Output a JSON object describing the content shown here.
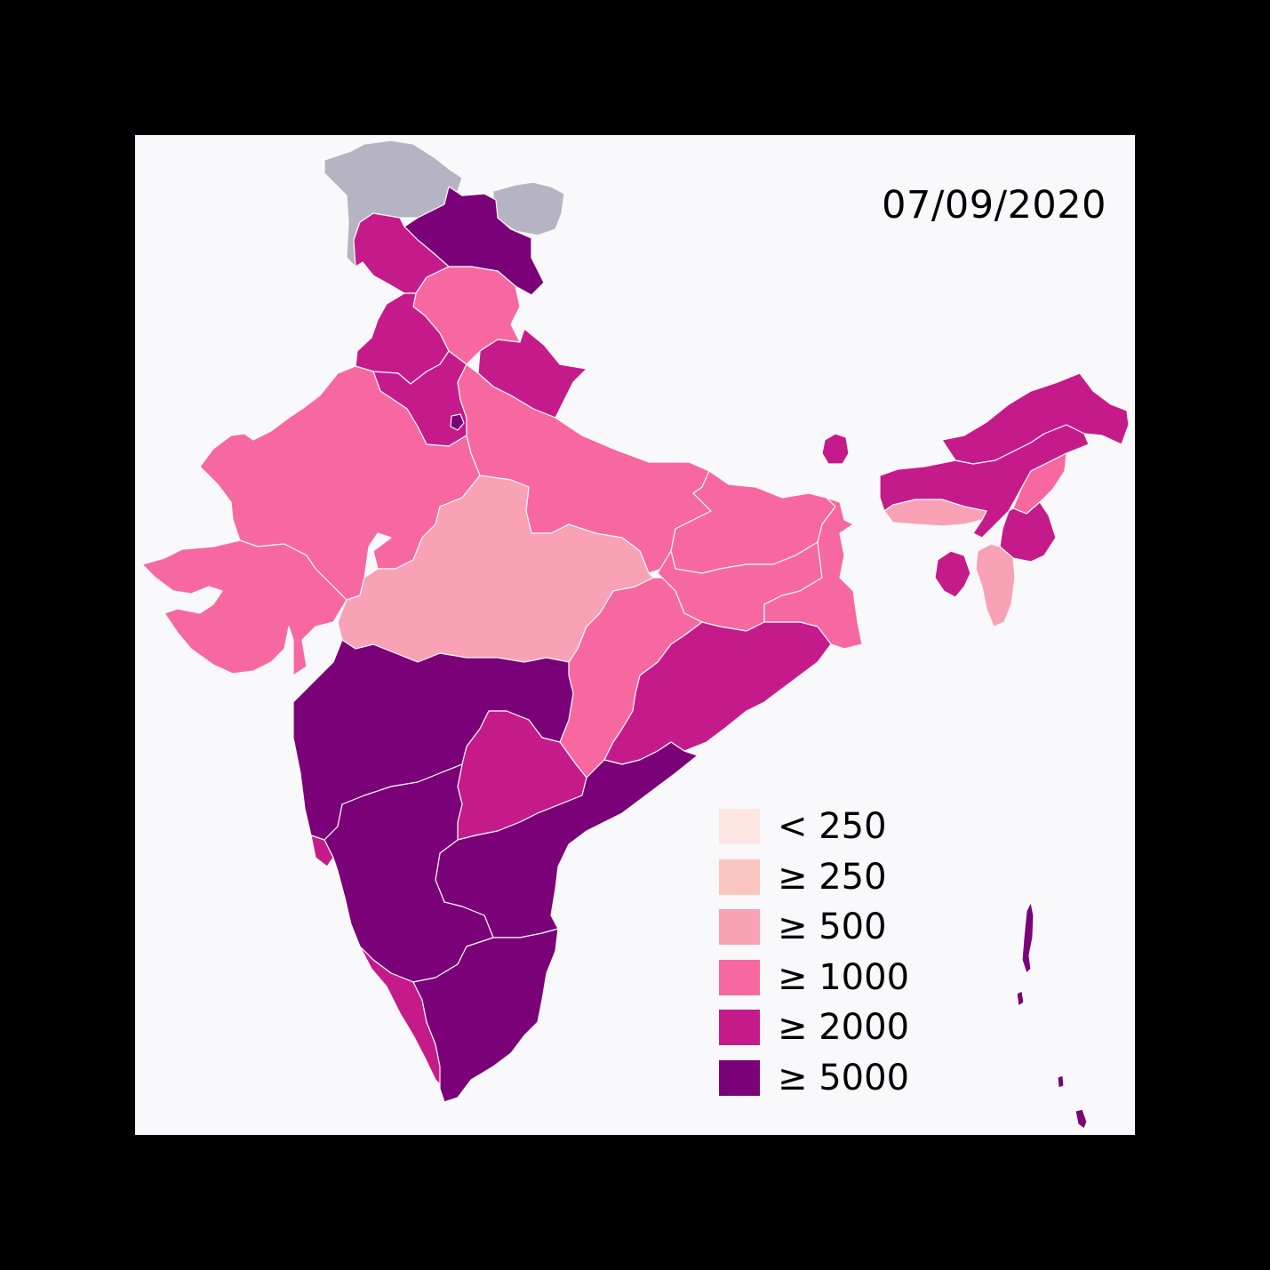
{
  "map": {
    "date": "07/09/2020",
    "background": "#f9f8fb",
    "border_color": "#f9f8fb",
    "no_data_color": "#b6b4c2"
  },
  "legend": {
    "items": [
      {
        "label": "< 250",
        "color": "#fde6e1"
      },
      {
        "label": "≥ 250",
        "color": "#fcc6c0"
      },
      {
        "label": "≥ 500",
        "color": "#f9a1b5"
      },
      {
        "label": "≥ 1000",
        "color": "#f768a1"
      },
      {
        "label": "≥ 2000",
        "color": "#c51b8a"
      },
      {
        "label": "≥ 5000",
        "color": "#7a0177"
      }
    ]
  },
  "regions": [
    {
      "name": "Aksai Chin / Gilgit (no data)",
      "bin": -1
    },
    {
      "name": "Ladakh",
      "bin": 5
    },
    {
      "name": "Jammu and Kashmir",
      "bin": 4
    },
    {
      "name": "Himachal Pradesh",
      "bin": 3
    },
    {
      "name": "Punjab",
      "bin": 4
    },
    {
      "name": "Haryana",
      "bin": 4
    },
    {
      "name": "Delhi",
      "bin": 5
    },
    {
      "name": "Uttarakhand",
      "bin": 4
    },
    {
      "name": "Rajasthan",
      "bin": 3
    },
    {
      "name": "Uttar Pradesh",
      "bin": 3
    },
    {
      "name": "Gujarat",
      "bin": 3
    },
    {
      "name": "Madhya Pradesh",
      "bin": 2
    },
    {
      "name": "Bihar",
      "bin": 3
    },
    {
      "name": "Jharkhand",
      "bin": 3
    },
    {
      "name": "West Bengal",
      "bin": 3
    },
    {
      "name": "Chhattisgarh",
      "bin": 3
    },
    {
      "name": "Odisha",
      "bin": 4
    },
    {
      "name": "Maharashtra",
      "bin": 5
    },
    {
      "name": "Telangana",
      "bin": 4
    },
    {
      "name": "Andhra Pradesh",
      "bin": 5
    },
    {
      "name": "Karnataka",
      "bin": 5
    },
    {
      "name": "Goa",
      "bin": 4
    },
    {
      "name": "Kerala",
      "bin": 4
    },
    {
      "name": "Tamil Nadu",
      "bin": 5
    },
    {
      "name": "Sikkim",
      "bin": 4
    },
    {
      "name": "Arunachal Pradesh",
      "bin": 4
    },
    {
      "name": "Assam",
      "bin": 4
    },
    {
      "name": "Meghalaya",
      "bin": 2
    },
    {
      "name": "Nagaland",
      "bin": 3
    },
    {
      "name": "Manipur",
      "bin": 4
    },
    {
      "name": "Tripura",
      "bin": 4
    },
    {
      "name": "Mizoram",
      "bin": 2
    },
    {
      "name": "Andaman and Nicobar Islands",
      "bin": 5
    },
    {
      "name": "Lakshadweep",
      "bin": 0
    }
  ]
}
